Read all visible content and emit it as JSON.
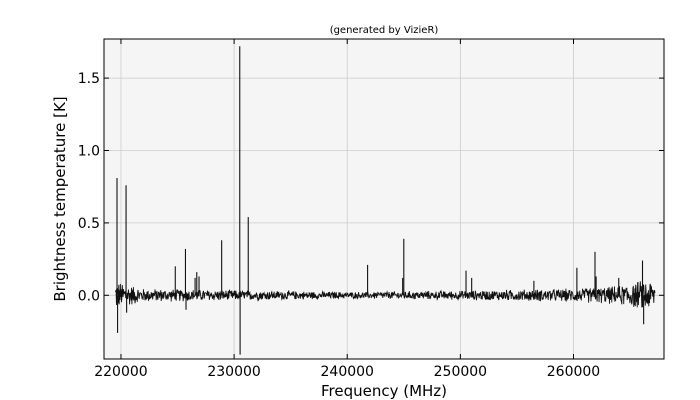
{
  "chart_data": {
    "type": "line",
    "title": "(generated by VizieR)",
    "xlabel": "Frequency (MHz)",
    "ylabel": "Brightness temperature [K]",
    "xlim": [
      218500,
      268000
    ],
    "ylim": [
      -0.44,
      1.77
    ],
    "x_ticks": [
      220000,
      230000,
      240000,
      250000,
      260000
    ],
    "x_tick_labels": [
      "220000",
      "230000",
      "240000",
      "250000",
      "260000"
    ],
    "y_ticks": [
      0.0,
      0.5,
      1.0,
      1.5
    ],
    "y_tick_labels": [
      "0.0",
      "0.5",
      "1.0",
      "1.5"
    ],
    "grid": true,
    "colors": {
      "line": "#111111",
      "plot_background": "#f5f5f5",
      "grid": "#cccccc"
    },
    "x_range": [
      219500,
      267200
    ],
    "noise_envelope": [
      {
        "x": 219500,
        "amp": 0.11
      },
      {
        "x": 222000,
        "amp": 0.05
      },
      {
        "x": 230000,
        "amp": 0.04
      },
      {
        "x": 240000,
        "amp": 0.025
      },
      {
        "x": 250000,
        "amp": 0.035
      },
      {
        "x": 260000,
        "amp": 0.05
      },
      {
        "x": 264000,
        "amp": 0.07
      },
      {
        "x": 266500,
        "amp": 0.12
      },
      {
        "x": 267200,
        "amp": 0.1
      }
    ],
    "lines": [
      {
        "x": 219650,
        "y": 0.81
      },
      {
        "x": 219700,
        "y": -0.26
      },
      {
        "x": 220450,
        "y": 0.76
      },
      {
        "x": 220500,
        "y": -0.12
      },
      {
        "x": 224800,
        "y": 0.2
      },
      {
        "x": 225700,
        "y": 0.32
      },
      {
        "x": 225750,
        "y": -0.1
      },
      {
        "x": 226550,
        "y": 0.12
      },
      {
        "x": 226700,
        "y": 0.16
      },
      {
        "x": 226900,
        "y": 0.13
      },
      {
        "x": 228900,
        "y": 0.38
      },
      {
        "x": 230500,
        "y": 1.72
      },
      {
        "x": 230530,
        "y": -0.41
      },
      {
        "x": 231250,
        "y": 0.54
      },
      {
        "x": 241800,
        "y": 0.21
      },
      {
        "x": 244900,
        "y": 0.12
      },
      {
        "x": 245000,
        "y": 0.39
      },
      {
        "x": 250500,
        "y": 0.17
      },
      {
        "x": 251000,
        "y": 0.12
      },
      {
        "x": 256500,
        "y": 0.1
      },
      {
        "x": 260300,
        "y": 0.19
      },
      {
        "x": 261900,
        "y": 0.3
      },
      {
        "x": 262000,
        "y": 0.13
      },
      {
        "x": 264000,
        "y": 0.12
      },
      {
        "x": 266100,
        "y": 0.24
      },
      {
        "x": 266200,
        "y": -0.2
      }
    ]
  }
}
